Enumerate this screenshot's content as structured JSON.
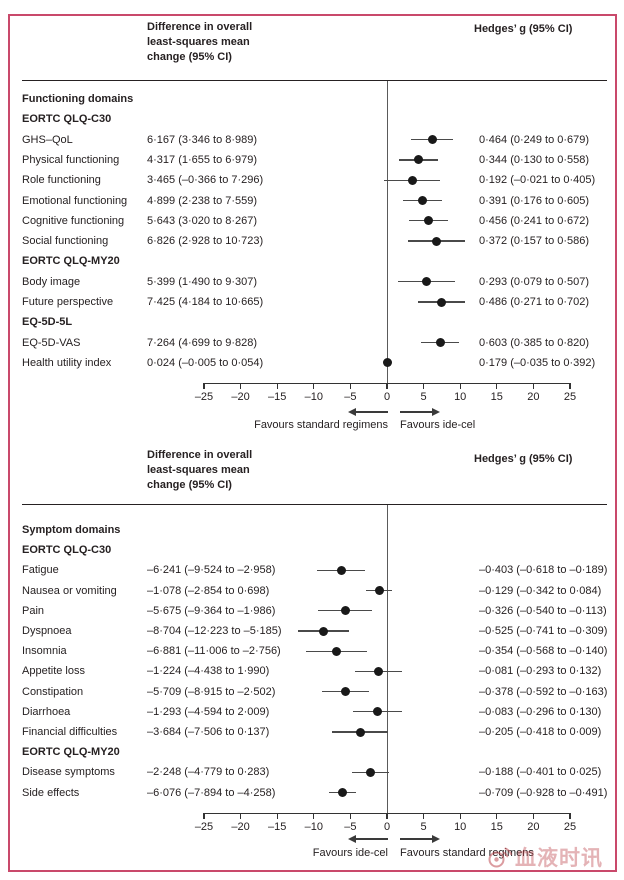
{
  "colors": {
    "figure_border": "#c9496b",
    "point": "#191919",
    "whisker": "#4a4a4a",
    "watermark": "#be4b52"
  },
  "watermark": {
    "logo": "weibo-eye-icon",
    "text": "血液时讯"
  },
  "chart_data": [
    {
      "type": "forest",
      "title": "Functioning domains",
      "col_headers": {
        "left": "Difference in overall\nleast-squares mean\nchange (95% CI)",
        "right": "Hedges’ g (95% CI)"
      },
      "xlim": [
        -25,
        25
      ],
      "xticks": [
        -25,
        -20,
        -15,
        -10,
        -5,
        0,
        5,
        10,
        15,
        20,
        25
      ],
      "tick_labels": [
        "–25",
        "–20",
        "–15",
        "–10",
        "–5",
        "0",
        "5",
        "10",
        "15",
        "20",
        "25"
      ],
      "favours": {
        "left": "Favours standard regimens",
        "right": "Favours ide-cel"
      },
      "rows": [
        {
          "header": true,
          "label": "Functioning domains"
        },
        {
          "header": true,
          "label": "EORTC QLQ-C30"
        },
        {
          "label": "GHS–QoL",
          "mean": 6.167,
          "ci": [
            3.346,
            8.989
          ],
          "diff_text": "6·167 (3·346 to 8·989)",
          "hedges_text": "0·464 (0·249 to 0·679)"
        },
        {
          "label": "Physical functioning",
          "mean": 4.317,
          "ci": [
            1.655,
            6.979
          ],
          "diff_text": "4·317 (1·655 to 6·979)",
          "hedges_text": "0·344 (0·130 to 0·558)"
        },
        {
          "label": "Role functioning",
          "mean": 3.465,
          "ci": [
            -0.366,
            7.296
          ],
          "diff_text": "3·465 (–0·366 to 7·296)",
          "hedges_text": "0·192 (–0·021 to 0·405)"
        },
        {
          "label": "Emotional functioning",
          "mean": 4.899,
          "ci": [
            2.238,
            7.559
          ],
          "diff_text": "4·899 (2·238 to 7·559)",
          "hedges_text": "0·391 (0·176 to 0·605)"
        },
        {
          "label": "Cognitive functioning",
          "mean": 5.643,
          "ci": [
            3.02,
            8.267
          ],
          "diff_text": "5·643 (3·020 to 8·267)",
          "hedges_text": "0·456 (0·241 to 0·672)"
        },
        {
          "label": "Social functioning",
          "mean": 6.826,
          "ci": [
            2.928,
            10.723
          ],
          "diff_text": "6·826 (2·928 to 10·723)",
          "hedges_text": "0·372 (0·157 to 0·586)"
        },
        {
          "header": true,
          "label": "EORTC QLQ-MY20"
        },
        {
          "label": "Body image",
          "mean": 5.399,
          "ci": [
            1.49,
            9.307
          ],
          "diff_text": "5·399 (1·490 to 9·307)",
          "hedges_text": "0·293 (0·079 to 0·507)"
        },
        {
          "label": "Future perspective",
          "mean": 7.425,
          "ci": [
            4.184,
            10.665
          ],
          "diff_text": "7·425 (4·184 to 10·665)",
          "hedges_text": "0·486 (0·271 to 0·702)"
        },
        {
          "header": true,
          "label": "EQ-5D-5L"
        },
        {
          "label": "EQ-5D-VAS",
          "mean": 7.264,
          "ci": [
            4.699,
            9.828
          ],
          "diff_text": "7·264 (4·699 to 9·828)",
          "hedges_text": "0·603 (0·385 to 0·820)"
        },
        {
          "label": "Health utility index",
          "mean": 0.024,
          "ci": [
            -0.005,
            0.054
          ],
          "diff_text": "0·024 (–0·005 to 0·054)",
          "hedges_text": "0·179 (–0·035 to 0·392)"
        }
      ]
    },
    {
      "type": "forest",
      "title": "Symptom domains",
      "col_headers": {
        "left": "Difference in overall\nleast-squares mean\nchange (95% CI)",
        "right": "Hedges’ g (95% CI)"
      },
      "xlim": [
        -25,
        25
      ],
      "xticks": [
        -25,
        -20,
        -15,
        -10,
        -5,
        0,
        5,
        10,
        15,
        20,
        25
      ],
      "tick_labels": [
        "–25",
        "–20",
        "–15",
        "–10",
        "–5",
        "0",
        "5",
        "10",
        "15",
        "20",
        "25"
      ],
      "favours": {
        "left": "Favours ide-cel",
        "right": "Favours standard regimens"
      },
      "rows": [
        {
          "header": true,
          "label": "Symptom domains"
        },
        {
          "header": true,
          "label": "EORTC QLQ-C30"
        },
        {
          "label": "Fatigue",
          "mean": -6.241,
          "ci": [
            -9.524,
            -2.958
          ],
          "diff_text": "–6·241 (–9·524 to –2·958)",
          "hedges_text": "–0·403 (–0·618 to –0·189)"
        },
        {
          "label": "Nausea or vomiting",
          "mean": -1.078,
          "ci": [
            -2.854,
            0.698
          ],
          "diff_text": "–1·078 (–2·854 to 0·698)",
          "hedges_text": "–0·129 (–0·342 to 0·084)"
        },
        {
          "label": "Pain",
          "mean": -5.675,
          "ci": [
            -9.364,
            -1.986
          ],
          "diff_text": "–5·675 (–9·364 to –1·986)",
          "hedges_text": "–0·326 (–0·540 to –0·113)"
        },
        {
          "label": "Dyspnoea",
          "mean": -8.704,
          "ci": [
            -12.223,
            -5.185
          ],
          "diff_text": "–8·704 (–12·223 to –5·185)",
          "hedges_text": "–0·525 (–0·741 to –0·309)"
        },
        {
          "label": "Insomnia",
          "mean": -6.881,
          "ci": [
            -11.006,
            -2.756
          ],
          "diff_text": "–6·881 (–11·006 to –2·756)",
          "hedges_text": "–0·354 (–0·568 to –0·140)"
        },
        {
          "label": "Appetite loss",
          "mean": -1.224,
          "ci": [
            -4.438,
            1.99
          ],
          "diff_text": "–1·224 (–4·438 to 1·990)",
          "hedges_text": "–0·081 (–0·293 to 0·132)"
        },
        {
          "label": "Constipation",
          "mean": -5.709,
          "ci": [
            -8.915,
            -2.502
          ],
          "diff_text": "–5·709 (–8·915 to –2·502)",
          "hedges_text": "–0·378 (–0·592 to –0·163)"
        },
        {
          "label": "Diarrhoea",
          "mean": -1.293,
          "ci": [
            -4.594,
            2.009
          ],
          "diff_text": "–1·293 (–4·594 to 2·009)",
          "hedges_text": "–0·083 (–0·296 to 0·130)"
        },
        {
          "label": "Financial difficulties",
          "mean": -3.684,
          "ci": [
            -7.506,
            0.137
          ],
          "diff_text": "–3·684 (–7·506 to 0·137)",
          "hedges_text": "–0·205 (–0·418 to 0·009)"
        },
        {
          "header": true,
          "label": "EORTC QLQ-MY20"
        },
        {
          "label": "Disease symptoms",
          "mean": -2.248,
          "ci": [
            -4.779,
            0.283
          ],
          "diff_text": "–2·248 (–4·779 to 0·283)",
          "hedges_text": "–0·188 (–0·401 to 0·025)"
        },
        {
          "label": "Side effects",
          "mean": -6.076,
          "ci": [
            -7.894,
            -4.258
          ],
          "diff_text": "–6·076 (–7·894 to –4·258)",
          "hedges_text": "–0·709 (–0·928 to –0·491)"
        }
      ]
    }
  ]
}
